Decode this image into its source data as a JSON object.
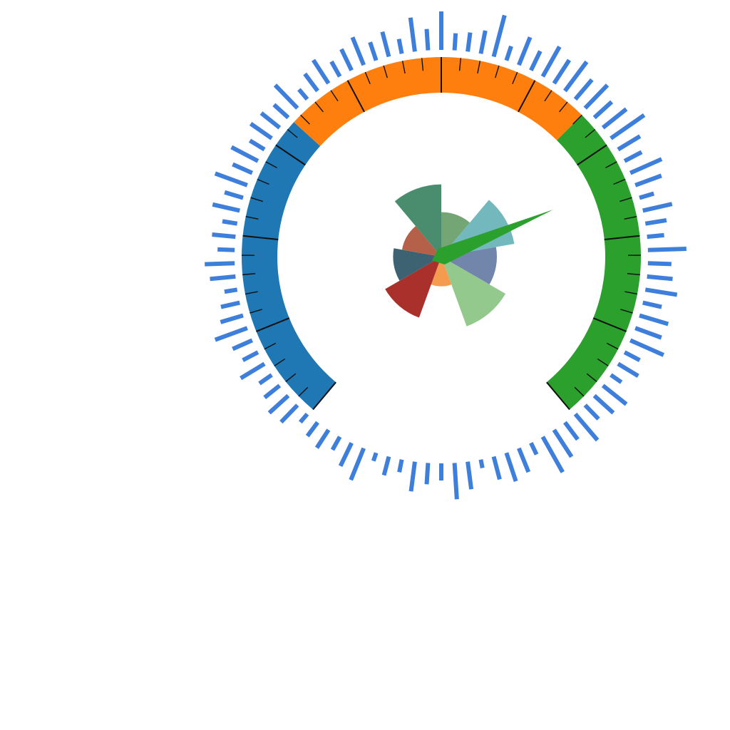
{
  "chart_data": [
    {
      "type": "gauge",
      "band_colors": [
        "#1f77b4",
        "#ff7f0e",
        "#2ca02c"
      ],
      "bands": [
        {
          "from": 0,
          "to": 33
        },
        {
          "from": 33,
          "to": 66
        },
        {
          "from": 66,
          "to": 100
        }
      ],
      "value": 74,
      "needle_color": "#2ca02c",
      "tick_color": "#111111"
    },
    {
      "type": "bar",
      "layout": "radial",
      "bar_color": "#3f7fdc",
      "values": [
        90,
        40,
        45,
        55,
        100,
        35,
        70,
        50,
        80,
        65,
        85,
        60,
        75,
        55,
        70,
        95,
        60,
        45,
        80,
        65,
        35,
        70,
        50,
        40,
        90,
        55,
        60,
        75,
        45,
        70,
        65,
        85,
        40,
        55,
        30,
        70,
        60,
        45,
        80,
        50,
        75,
        95,
        30,
        60,
        70,
        55,
        20,
        65,
        85,
        40,
        50,
        70,
        30,
        45,
        20,
        80,
        60,
        35,
        50,
        40,
        25,
        55,
        60,
        45,
        35,
        65,
        40,
        50,
        80,
        55,
        45,
        30,
        60,
        70,
        40,
        55,
        35,
        65,
        45,
        80,
        50,
        70,
        40,
        60,
        55,
        45,
        75,
        30,
        50,
        65,
        40,
        55,
        70,
        45,
        60,
        35,
        80,
        50
      ]
    },
    {
      "type": "pie",
      "layout": "rose",
      "slices": [
        {
          "value": 0.48,
          "color": "#74a574"
        },
        {
          "value": 0.8,
          "color": "#72b8bd"
        },
        {
          "value": 0.6,
          "color": "#7186aa"
        },
        {
          "value": 0.8,
          "color": "#93c98d"
        },
        {
          "value": 0.32,
          "color": "#f59b50"
        },
        {
          "value": 0.7,
          "color": "#a9302b"
        },
        {
          "value": 0.52,
          "color": "#3d6272"
        },
        {
          "value": 0.43,
          "color": "#b5614a"
        },
        {
          "value": 0.78,
          "color": "#4a8d6e"
        }
      ]
    }
  ]
}
